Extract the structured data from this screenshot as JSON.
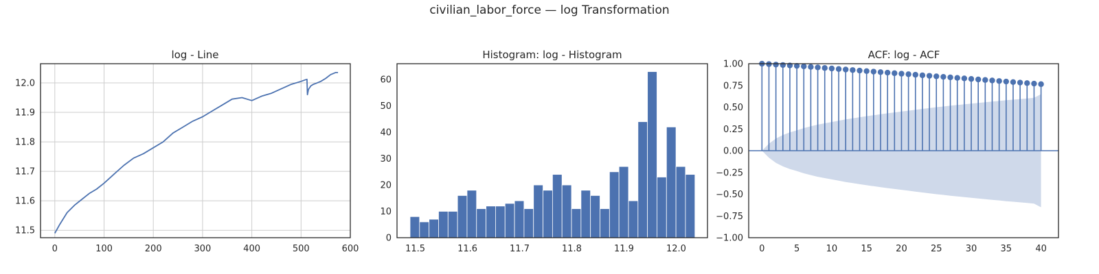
{
  "figure": {
    "title": "civilian_labor_force — log Transformation"
  },
  "colors": {
    "series": "#4c72b0",
    "band": "#cfd9ea",
    "axis": "#262626",
    "grid": "#cccccc"
  },
  "chart_data": [
    {
      "type": "line",
      "title": "log - Line",
      "xlabel": "",
      "ylabel": "",
      "grid": true,
      "xlim": [
        -29,
        600
      ],
      "ylim": [
        11.475,
        12.065
      ],
      "xticks": [
        0,
        100,
        200,
        300,
        400,
        500,
        600
      ],
      "yticks": [
        11.5,
        11.6,
        11.7,
        11.8,
        11.9,
        12.0
      ],
      "x": [
        0,
        10,
        25,
        40,
        55,
        70,
        85,
        100,
        120,
        140,
        160,
        180,
        200,
        220,
        240,
        260,
        280,
        300,
        320,
        340,
        360,
        380,
        400,
        420,
        440,
        460,
        480,
        500,
        508,
        512,
        513,
        515,
        518,
        520,
        525,
        530,
        540,
        550,
        560,
        570,
        575
      ],
      "y": [
        11.49,
        11.52,
        11.56,
        11.585,
        11.605,
        11.625,
        11.64,
        11.66,
        11.69,
        11.72,
        11.745,
        11.76,
        11.78,
        11.8,
        11.83,
        11.85,
        11.87,
        11.885,
        11.905,
        11.925,
        11.945,
        11.95,
        11.94,
        11.955,
        11.965,
        11.98,
        11.995,
        12.005,
        12.01,
        12.012,
        11.96,
        11.978,
        11.985,
        11.99,
        11.995,
        11.998,
        12.005,
        12.015,
        12.028,
        12.035,
        12.035
      ],
      "series_name": ""
    },
    {
      "type": "bar",
      "title": "Histogram: log - Histogram",
      "xlabel": "",
      "ylabel": "",
      "grid": false,
      "xlim": [
        11.465,
        12.06
      ],
      "ylim": [
        0,
        66
      ],
      "xticks": [
        11.5,
        11.6,
        11.7,
        11.8,
        11.9,
        12.0
      ],
      "yticks": [
        0,
        10,
        20,
        30,
        40,
        50,
        60
      ],
      "bin_start": 11.49,
      "bin_width": 0.0182,
      "counts": [
        8,
        6,
        7,
        10,
        10,
        16,
        18,
        11,
        12,
        12,
        13,
        14,
        11,
        20,
        18,
        24,
        20,
        11,
        18,
        16,
        11,
        25,
        27,
        14,
        44,
        63,
        23,
        42,
        27,
        24
      ]
    },
    {
      "type": "line",
      "title": "ACF: log - ACF",
      "xlabel": "",
      "ylabel": "",
      "grid": false,
      "xlim": [
        -1.9,
        42.5
      ],
      "ylim": [
        -1.0,
        1.0
      ],
      "xticks": [
        0,
        5,
        10,
        15,
        20,
        25,
        30,
        35,
        40
      ],
      "yticks": [
        -1.0,
        -0.75,
        -0.5,
        -0.25,
        0.0,
        0.25,
        0.5,
        0.75,
        1.0
      ],
      "ytick_labels": [
        "−1.00",
        "−0.75",
        "−0.50",
        "−0.25",
        "0.00",
        "0.25",
        "0.50",
        "0.75",
        "1.00"
      ],
      "lags": [
        0,
        1,
        2,
        3,
        4,
        5,
        6,
        7,
        8,
        9,
        10,
        11,
        12,
        13,
        14,
        15,
        16,
        17,
        18,
        19,
        20,
        21,
        22,
        23,
        24,
        25,
        26,
        27,
        28,
        29,
        30,
        31,
        32,
        33,
        34,
        35,
        36,
        37,
        38,
        39,
        40
      ],
      "acf": [
        1.0,
        0.995,
        0.99,
        0.985,
        0.98,
        0.975,
        0.969,
        0.963,
        0.957,
        0.951,
        0.945,
        0.939,
        0.933,
        0.927,
        0.921,
        0.915,
        0.909,
        0.903,
        0.897,
        0.891,
        0.885,
        0.879,
        0.873,
        0.867,
        0.861,
        0.855,
        0.849,
        0.843,
        0.837,
        0.831,
        0.825,
        0.819,
        0.813,
        0.807,
        0.801,
        0.795,
        0.789,
        0.783,
        0.777,
        0.771,
        0.765
      ],
      "confint_upper": [
        0.0,
        0.08,
        0.14,
        0.18,
        0.21,
        0.235,
        0.26,
        0.28,
        0.3,
        0.315,
        0.33,
        0.345,
        0.36,
        0.372,
        0.385,
        0.397,
        0.408,
        0.419,
        0.43,
        0.44,
        0.45,
        0.46,
        0.47,
        0.48,
        0.49,
        0.5,
        0.508,
        0.517,
        0.525,
        0.533,
        0.541,
        0.549,
        0.557,
        0.565,
        0.572,
        0.58,
        0.587,
        0.594,
        0.601,
        0.608,
        0.65
      ]
    }
  ]
}
